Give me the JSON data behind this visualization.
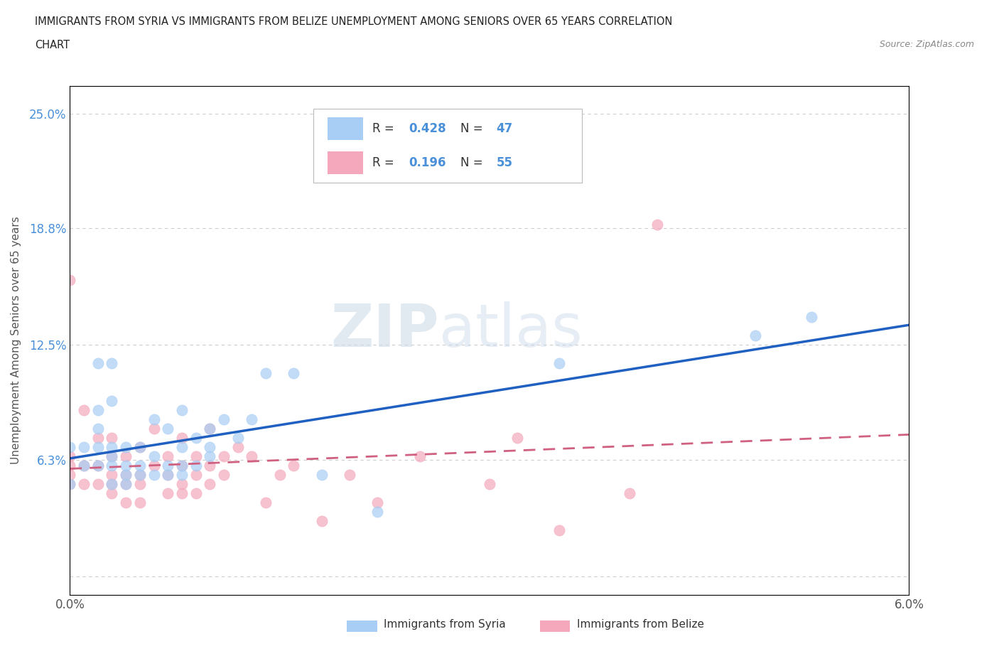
{
  "title_line1": "IMMIGRANTS FROM SYRIA VS IMMIGRANTS FROM BELIZE UNEMPLOYMENT AMONG SENIORS OVER 65 YEARS CORRELATION",
  "title_line2": "CHART",
  "source": "Source: ZipAtlas.com",
  "ylabel": "Unemployment Among Seniors over 65 years",
  "xlim": [
    0.0,
    0.06
  ],
  "ylim": [
    -0.01,
    0.265
  ],
  "xtick_positions": [
    0.0,
    0.01,
    0.02,
    0.03,
    0.04,
    0.05,
    0.06
  ],
  "xticklabels": [
    "0.0%",
    "",
    "",
    "",
    "",
    "",
    "6.0%"
  ],
  "ytick_positions": [
    0.0,
    0.063,
    0.125,
    0.188,
    0.25
  ],
  "yticklabels": [
    "",
    "6.3%",
    "12.5%",
    "18.8%",
    "25.0%"
  ],
  "syria_color": "#a8cef5",
  "belize_color": "#f5a8bc",
  "syria_line_color": "#2060c0",
  "belize_line_color": "#d06080",
  "label_color": "#4a90d9",
  "R_syria": 0.428,
  "N_syria": 47,
  "R_belize": 0.196,
  "N_belize": 55,
  "grid_color": "#cccccc",
  "watermark_zip": "ZIP",
  "watermark_atlas": "atlas",
  "syria_x": [
    0.0,
    0.0,
    0.001,
    0.001,
    0.002,
    0.002,
    0.002,
    0.002,
    0.002,
    0.003,
    0.003,
    0.003,
    0.003,
    0.003,
    0.003,
    0.004,
    0.004,
    0.004,
    0.004,
    0.005,
    0.005,
    0.005,
    0.006,
    0.006,
    0.006,
    0.007,
    0.007,
    0.007,
    0.008,
    0.008,
    0.008,
    0.008,
    0.009,
    0.009,
    0.01,
    0.01,
    0.01,
    0.011,
    0.012,
    0.013,
    0.014,
    0.016,
    0.018,
    0.022,
    0.035,
    0.049,
    0.053
  ],
  "syria_y": [
    0.05,
    0.07,
    0.06,
    0.07,
    0.06,
    0.07,
    0.08,
    0.09,
    0.115,
    0.05,
    0.06,
    0.065,
    0.07,
    0.095,
    0.115,
    0.05,
    0.055,
    0.06,
    0.07,
    0.055,
    0.06,
    0.07,
    0.055,
    0.065,
    0.085,
    0.055,
    0.06,
    0.08,
    0.055,
    0.06,
    0.07,
    0.09,
    0.06,
    0.075,
    0.065,
    0.07,
    0.08,
    0.085,
    0.075,
    0.085,
    0.11,
    0.11,
    0.055,
    0.035,
    0.115,
    0.13,
    0.14
  ],
  "belize_x": [
    0.0,
    0.0,
    0.0,
    0.0,
    0.0,
    0.001,
    0.001,
    0.001,
    0.002,
    0.002,
    0.002,
    0.003,
    0.003,
    0.003,
    0.003,
    0.003,
    0.004,
    0.004,
    0.004,
    0.004,
    0.005,
    0.005,
    0.005,
    0.005,
    0.006,
    0.006,
    0.007,
    0.007,
    0.007,
    0.008,
    0.008,
    0.008,
    0.008,
    0.009,
    0.009,
    0.009,
    0.01,
    0.01,
    0.01,
    0.011,
    0.011,
    0.012,
    0.013,
    0.014,
    0.015,
    0.016,
    0.018,
    0.02,
    0.022,
    0.025,
    0.03,
    0.032,
    0.035,
    0.04,
    0.042
  ],
  "belize_y": [
    0.05,
    0.055,
    0.06,
    0.065,
    0.16,
    0.05,
    0.06,
    0.09,
    0.05,
    0.06,
    0.075,
    0.045,
    0.05,
    0.055,
    0.065,
    0.075,
    0.04,
    0.05,
    0.055,
    0.065,
    0.04,
    0.05,
    0.055,
    0.07,
    0.06,
    0.08,
    0.045,
    0.055,
    0.065,
    0.045,
    0.05,
    0.06,
    0.075,
    0.045,
    0.055,
    0.065,
    0.05,
    0.06,
    0.08,
    0.055,
    0.065,
    0.07,
    0.065,
    0.04,
    0.055,
    0.06,
    0.03,
    0.055,
    0.04,
    0.065,
    0.05,
    0.075,
    0.025,
    0.045,
    0.19
  ]
}
